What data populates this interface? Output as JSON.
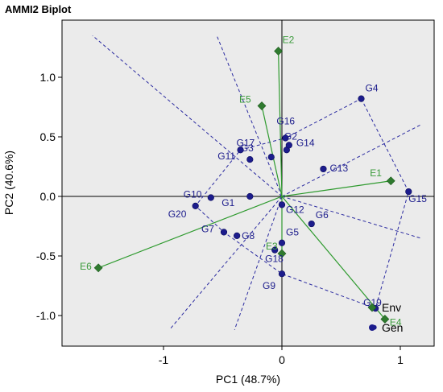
{
  "chart_data": {
    "type": "scatter",
    "title": "AMMI2 Biplot",
    "xlabel": "PC1 (48.7%)",
    "ylabel": "PC2 (40.6%)",
    "xlim": [
      -1.85,
      1.3
    ],
    "ylim": [
      -1.28,
      1.38
    ],
    "x_ticks": [
      -1,
      0,
      1
    ],
    "x_tick_labels": [
      "-1",
      "0",
      "1"
    ],
    "y_ticks": [
      1.0,
      0.5,
      0.0,
      -0.5,
      -1.0
    ],
    "y_tick_labels": [
      "1.0",
      "0.5",
      "0.0",
      "-0.5",
      "-1.0"
    ],
    "grid": false,
    "legend_position": "bottom-right",
    "colors": {
      "genotype": "#1c1c8c",
      "environment_marker": "#2f7a2f",
      "environment_label": "#3a9a3a",
      "environment_vector": "#2e9a2e",
      "polygon": "#2a2aa0",
      "background": "#ebebeb"
    },
    "series": [
      {
        "name": "Env",
        "marker": "diamond",
        "points": [
          {
            "label": "E1",
            "x": 0.92,
            "y": 0.13
          },
          {
            "label": "E2",
            "x": -0.03,
            "y": 1.22
          },
          {
            "label": "E3",
            "x": 0.0,
            "y": -0.48
          },
          {
            "label": "E4",
            "x": 0.87,
            "y": -1.03
          },
          {
            "label": "E5",
            "x": -0.17,
            "y": 0.76
          },
          {
            "label": "E6",
            "x": -1.55,
            "y": -0.6
          }
        ]
      },
      {
        "name": "Gen",
        "marker": "circle",
        "points": [
          {
            "label": "G1",
            "x": -0.27,
            "y": 0.0
          },
          {
            "label": "G2",
            "x": 0.04,
            "y": 0.39
          },
          {
            "label": "G3",
            "x": -0.09,
            "y": 0.33
          },
          {
            "label": "G4",
            "x": 0.67,
            "y": 0.82
          },
          {
            "label": "G5",
            "x": 0.0,
            "y": -0.39
          },
          {
            "label": "G6",
            "x": 0.25,
            "y": -0.23
          },
          {
            "label": "G7",
            "x": -0.49,
            "y": -0.3
          },
          {
            "label": "G8",
            "x": -0.38,
            "y": -0.33
          },
          {
            "label": "G9",
            "x": 0.0,
            "y": -0.65
          },
          {
            "label": "G10",
            "x": -0.6,
            "y": -0.01
          },
          {
            "label": "G11",
            "x": -0.27,
            "y": 0.31
          },
          {
            "label": "G12",
            "x": 0.0,
            "y": -0.07
          },
          {
            "label": "G13",
            "x": 0.35,
            "y": 0.23
          },
          {
            "label": "G14",
            "x": 0.06,
            "y": 0.43
          },
          {
            "label": "G15",
            "x": 1.07,
            "y": 0.04
          },
          {
            "label": "G16",
            "x": 0.03,
            "y": 0.49
          },
          {
            "label": "G17",
            "x": -0.35,
            "y": 0.39
          },
          {
            "label": "G18",
            "x": -0.06,
            "y": -0.45
          },
          {
            "label": "G19",
            "x": 0.79,
            "y": -0.94
          },
          {
            "label": "G20",
            "x": -0.73,
            "y": -0.08
          }
        ]
      }
    ],
    "extra_genotype_point": {
      "x": 0.78,
      "y": -1.1
    },
    "polygon": [
      "G4",
      "G15",
      "G19",
      "G9",
      "G7",
      "G20",
      "G17",
      "G16"
    ],
    "rays": [
      {
        "to": [
          -1.6,
          1.35
        ]
      },
      {
        "to": [
          -0.55,
          1.35
        ]
      },
      {
        "to": [
          1.17,
          0.6
        ]
      },
      {
        "to": [
          1.17,
          -0.35
        ]
      },
      {
        "to": [
          -0.95,
          -1.12
        ]
      },
      {
        "to": [
          -0.4,
          -1.12
        ]
      }
    ]
  }
}
